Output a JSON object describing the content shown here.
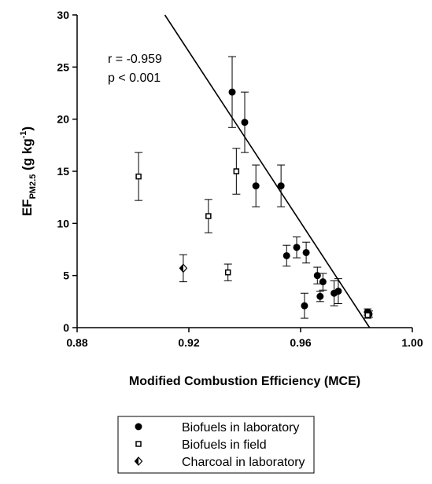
{
  "chart_data": {
    "type": "scatter",
    "x_label": "Modified Combustion Efficiency (MCE)",
    "y_label": {
      "main": "EF",
      "sub": "PM2.5",
      "unit_start": "(g kg",
      "unit_sup": "-1",
      "unit_end": ")"
    },
    "annotations": [
      "r = -0.959",
      "p < 0.001"
    ],
    "xlim": [
      0.88,
      1.0
    ],
    "xticks": [
      0.88,
      0.92,
      0.96,
      {
        "value": 1.0,
        "label": "1.00"
      }
    ],
    "ylim": [
      0,
      30
    ],
    "yticks": [
      0,
      5,
      10,
      15,
      20,
      25,
      30
    ],
    "fit": {
      "x": [
        0.9114,
        0.9847
      ],
      "values": [
        30,
        0
      ],
      "color": "#000000"
    },
    "series": [
      {
        "name": "Biofuels in laboratory",
        "marker": "circle",
        "color": "#000000",
        "x": [
          0.9355,
          0.94,
          0.944,
          0.953,
          0.955,
          0.9586,
          0.962,
          0.966,
          0.968,
          0.9614,
          0.967,
          0.972,
          0.9735,
          0.984,
          0.9845
        ],
        "values": [
          22.6,
          19.7,
          13.6,
          13.6,
          6.9,
          7.7,
          7.2,
          5.0,
          4.4,
          2.1,
          3.0,
          3.3,
          3.5,
          1.5,
          1.3
        ],
        "errors": [
          3.4,
          2.9,
          2.0,
          2.0,
          1.0,
          1.0,
          1.0,
          0.8,
          0.8,
          1.2,
          0.5,
          1.2,
          1.2,
          0.3,
          0.3
        ]
      },
      {
        "name": "Biofuels in field",
        "marker": "square",
        "color": "#000000",
        "x": [
          0.902,
          0.927,
          0.934,
          0.937,
          0.984
        ],
        "values": [
          14.5,
          10.7,
          5.3,
          15.0,
          1.2
        ],
        "errors": [
          2.3,
          1.6,
          0.8,
          2.2,
          0.3
        ]
      },
      {
        "name": "Charcoal in laboratory",
        "marker": "diamond",
        "color": "#000000",
        "x": [
          0.918
        ],
        "values": [
          5.7
        ],
        "errors": [
          1.3
        ]
      }
    ]
  }
}
